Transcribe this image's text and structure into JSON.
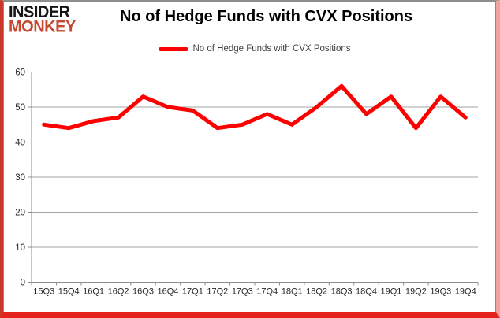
{
  "logo": {
    "line1": "INSIDER",
    "line2": "MONKEY"
  },
  "title": "No of Hedge Funds with CVX Positions",
  "legend": {
    "label": "No of Hedge Funds with CVX Positions"
  },
  "colors": {
    "series_line": "#fe0000",
    "logo_black": "#151515",
    "logo_red": "#c6492f",
    "gridline": "#a3a3a3",
    "axis": "#8c8c8c",
    "tick_label": "#262626",
    "legend_text": "#3f3f3f",
    "frame_red": "#e3231c"
  },
  "chart_data": {
    "type": "line",
    "title": "No of Hedge Funds with CVX Positions",
    "categories": [
      "15Q3",
      "15Q4",
      "16Q1",
      "16Q2",
      "16Q3",
      "16Q4",
      "17Q1",
      "17Q2",
      "17Q3",
      "17Q4",
      "18Q1",
      "18Q2",
      "18Q3",
      "18Q4",
      "19Q1",
      "19Q2",
      "19Q3",
      "19Q4"
    ],
    "series": [
      {
        "name": "No of Hedge Funds with CVX Positions",
        "color": "#fe0000",
        "values": [
          45,
          44,
          46,
          47,
          53,
          50,
          49,
          44,
          45,
          48,
          45,
          50,
          56,
          48,
          53,
          44,
          53,
          47
        ]
      }
    ],
    "xlabel": "",
    "ylabel": "",
    "ylim": [
      0,
      60
    ],
    "ytick_step": 10,
    "grid": true,
    "legend_position": "top"
  }
}
